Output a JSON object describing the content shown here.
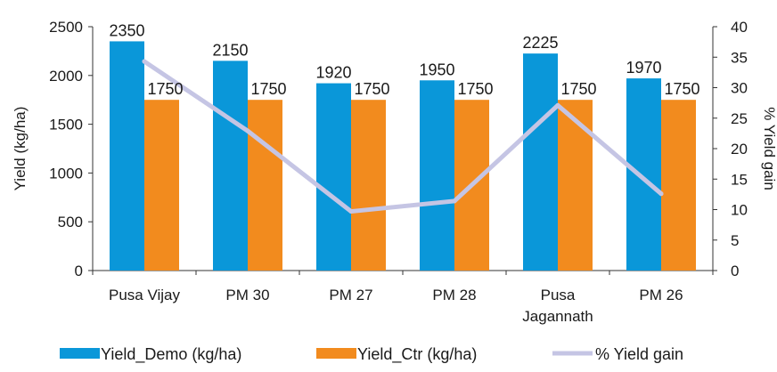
{
  "chart_data": {
    "type": "bar",
    "categories": [
      [
        "Pusa Vijay"
      ],
      [
        "PM 30"
      ],
      [
        "PM 27"
      ],
      [
        "PM 28"
      ],
      [
        "Pusa",
        "Jagannath"
      ],
      [
        "PM 26"
      ]
    ],
    "series": [
      {
        "name": "Yield_Demo (kg/ha)",
        "type": "bar",
        "axis": "left",
        "color": "#0a97d9",
        "values": [
          2350,
          2150,
          1920,
          1950,
          2225,
          1970
        ]
      },
      {
        "name": "Yield_Ctr (kg/ha)",
        "type": "bar",
        "axis": "left",
        "color": "#f28b1e",
        "values": [
          1750,
          1750,
          1750,
          1750,
          1750,
          1750
        ]
      },
      {
        "name": "% Yield gain",
        "type": "line",
        "axis": "right",
        "color": "#c5c5e4",
        "values": [
          34.3,
          22.9,
          9.7,
          11.4,
          27.1,
          12.6
        ]
      }
    ],
    "ylabel": "Yield (kg/ha)",
    "y2label": "% Yield gain",
    "ylim": [
      0,
      2500
    ],
    "yticks": [
      0,
      500,
      1000,
      1500,
      2000,
      2500
    ],
    "y2lim": [
      0,
      40
    ],
    "y2ticks": [
      0,
      5,
      10,
      15,
      20,
      25,
      30,
      35,
      40
    ],
    "data_labels": true,
    "grid": false,
    "legend_position": "bottom"
  }
}
